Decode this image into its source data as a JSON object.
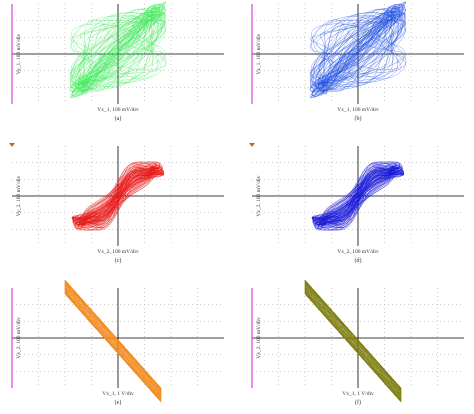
{
  "panels": [
    {
      "caption": "(a)",
      "x_label": "Vx_1, 100 mV/div",
      "y_label": "Vy_1, 100 mV/div"
    },
    {
      "caption": "(b)",
      "x_label": "Vx_1, 100 mV/div",
      "y_label": "Vz_1, 100 mV/div"
    },
    {
      "caption": "(c)",
      "x_label": "Vx_2, 100 mV/div",
      "y_label": "Vy_2, 100 mV/div"
    },
    {
      "caption": "(d)",
      "x_label": "Vx_2, 100 mV/div",
      "y_label": "Vz_2, 100 mV/div"
    },
    {
      "caption": "(e)",
      "x_label": "Vx_1, 1 V/div",
      "y_label": "Vx_2, 100 mV/div"
    },
    {
      "caption": "(f)",
      "x_label": "Vx_1, 1 V/div",
      "y_label": "Vx_2, 100 mV/div"
    }
  ]
}
